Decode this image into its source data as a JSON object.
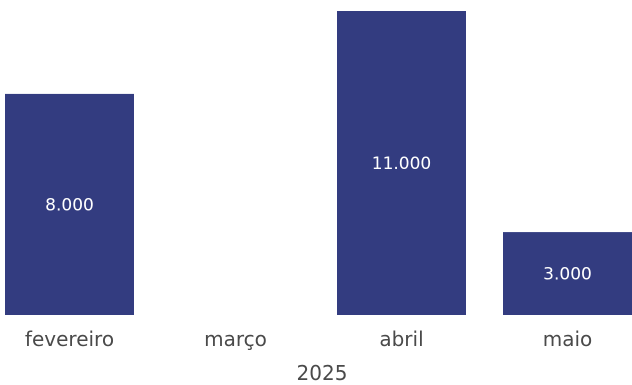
{
  "chart_data": {
    "type": "bar",
    "categories": [
      "fevereiro",
      "março",
      "abril",
      "maio"
    ],
    "values": [
      8000,
      null,
      11000,
      3000
    ],
    "value_labels": [
      "8.000",
      "",
      "11.000",
      "3.000"
    ],
    "xlabel": "2025",
    "ylabel": "",
    "ylim": [
      0,
      11000
    ],
    "grid": false,
    "bar_color": "#333c80",
    "label_color": "#ffffff"
  }
}
